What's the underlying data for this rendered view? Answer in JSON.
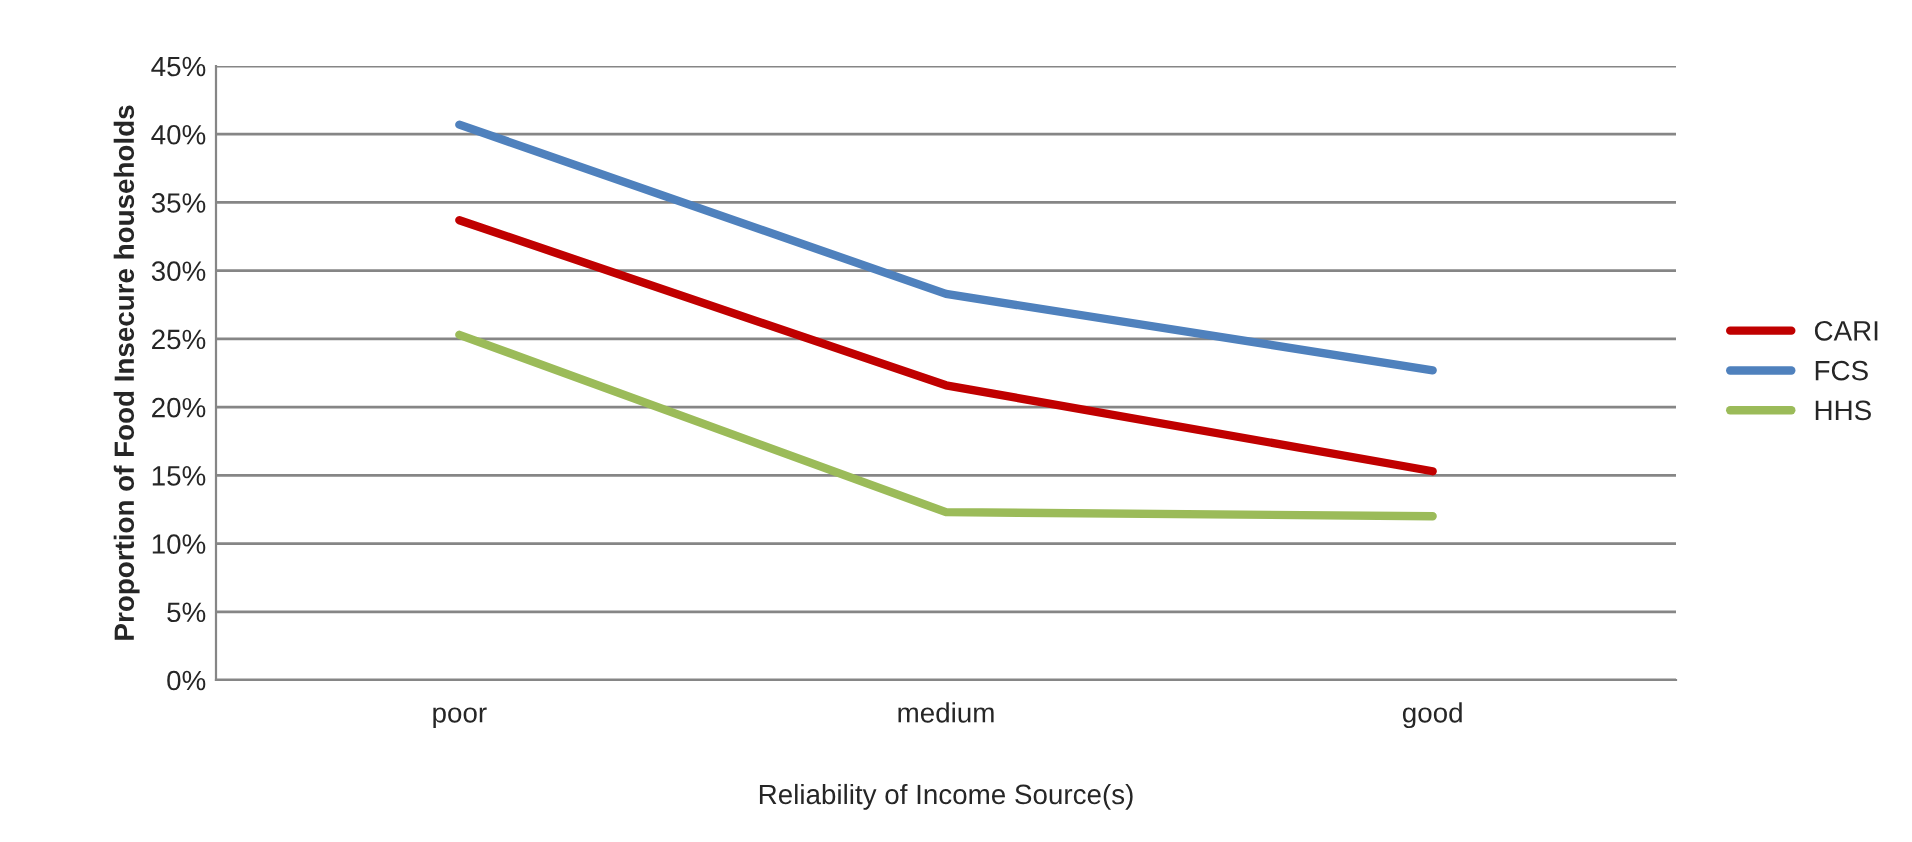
{
  "chart_data": {
    "type": "line",
    "xlabel": "Reliability of Income Source(s)",
    "ylabel": "Proportion of Food Insecure households",
    "categories": [
      "poor",
      "medium",
      "good"
    ],
    "series": [
      {
        "name": "CARI",
        "color": "#c00000",
        "values": [
          33.7,
          21.6,
          15.3
        ]
      },
      {
        "name": "FCS",
        "color": "#4f81bd",
        "values": [
          40.7,
          28.3,
          22.7
        ]
      },
      {
        "name": "HHS",
        "color": "#9bbb59",
        "values": [
          25.3,
          12.3,
          12.0
        ]
      }
    ],
    "ylim": [
      0,
      45
    ],
    "yticks": [
      {
        "value": 0,
        "label": "0%"
      },
      {
        "value": 5,
        "label": "5%"
      },
      {
        "value": 10,
        "label": "10%"
      },
      {
        "value": 15,
        "label": "15%"
      },
      {
        "value": 20,
        "label": "20%"
      },
      {
        "value": 25,
        "label": "25%"
      },
      {
        "value": 30,
        "label": "30%"
      },
      {
        "value": 35,
        "label": "35%"
      },
      {
        "value": 40,
        "label": "40%"
      },
      {
        "value": 45,
        "label": "45%"
      }
    ],
    "grid": "y",
    "legend": "right",
    "marker": "none",
    "line_style": "solid"
  }
}
